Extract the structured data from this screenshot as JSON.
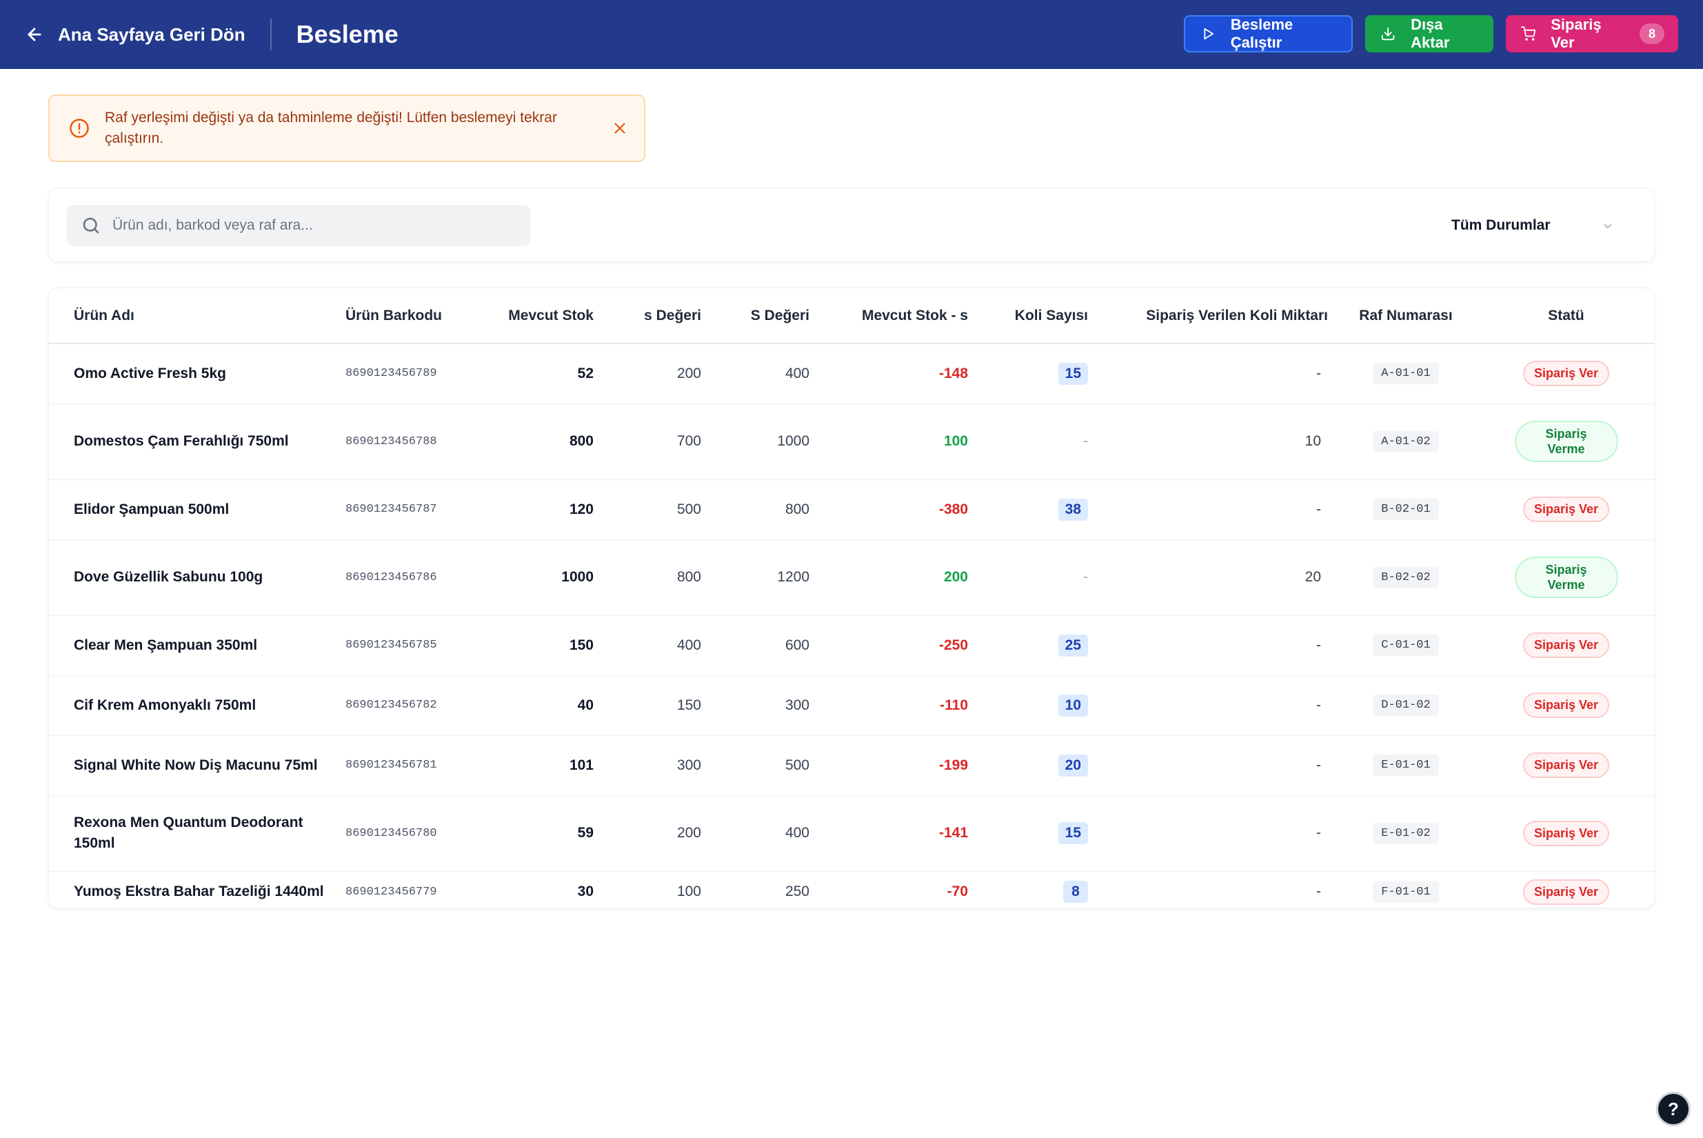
{
  "header": {
    "back_label": "Ana Sayfaya Geri Dön",
    "title": "Besleme",
    "run_label": "Besleme Çalıştır",
    "export_label": "Dışa Aktar",
    "order_label": "Sipariş Ver",
    "order_count": "8"
  },
  "alert": {
    "message": "Raf yerleşimi değişti ya da tahminleme değişti! Lütfen beslemeyi tekrar çalıştırın."
  },
  "filters": {
    "search_placeholder": "Ürün adı, barkod veya raf ara...",
    "status_value": "Tüm Durumlar"
  },
  "table": {
    "columns": [
      "Ürün Adı",
      "Ürün Barkodu",
      "Mevcut Stok",
      "s Değeri",
      "S Değeri",
      "Mevcut Stok - s",
      "Koli Sayısı",
      "Sipariş Verilen Koli Miktarı",
      "Raf Numarası",
      "Statü"
    ],
    "rows": [
      {
        "name": "Omo Active Fresh 5kg",
        "barcode": "8690123456789",
        "stock": "52",
        "s": "200",
        "S": "400",
        "diff": "-148",
        "koli": "15",
        "ordered": "-",
        "shelf": "A-01-01",
        "status": "Sipariş Ver"
      },
      {
        "name": "Domestos Çam Ferahlığı 750ml",
        "barcode": "8690123456788",
        "stock": "800",
        "s": "700",
        "S": "1000",
        "diff": "100",
        "koli": "-",
        "ordered": "10",
        "shelf": "A-01-02",
        "status": "Sipariş Verme"
      },
      {
        "name": "Elidor Şampuan 500ml",
        "barcode": "8690123456787",
        "stock": "120",
        "s": "500",
        "S": "800",
        "diff": "-380",
        "koli": "38",
        "ordered": "-",
        "shelf": "B-02-01",
        "status": "Sipariş Ver"
      },
      {
        "name": "Dove Güzellik Sabunu 100g",
        "barcode": "8690123456786",
        "stock": "1000",
        "s": "800",
        "S": "1200",
        "diff": "200",
        "koli": "-",
        "ordered": "20",
        "shelf": "B-02-02",
        "status": "Sipariş Verme"
      },
      {
        "name": "Clear Men Şampuan 350ml",
        "barcode": "8690123456785",
        "stock": "150",
        "s": "400",
        "S": "600",
        "diff": "-250",
        "koli": "25",
        "ordered": "-",
        "shelf": "C-01-01",
        "status": "Sipariş Ver"
      },
      {
        "name": "Cif Krem Amonyaklı 750ml",
        "barcode": "8690123456782",
        "stock": "40",
        "s": "150",
        "S": "300",
        "diff": "-110",
        "koli": "10",
        "ordered": "-",
        "shelf": "D-01-02",
        "status": "Sipariş Ver"
      },
      {
        "name": "Signal White Now Diş Macunu 75ml",
        "barcode": "8690123456781",
        "stock": "101",
        "s": "300",
        "S": "500",
        "diff": "-199",
        "koli": "20",
        "ordered": "-",
        "shelf": "E-01-01",
        "status": "Sipariş Ver"
      },
      {
        "name": "Rexona Men Quantum Deodorant 150ml",
        "barcode": "8690123456780",
        "stock": "59",
        "s": "200",
        "S": "400",
        "diff": "-141",
        "koli": "15",
        "ordered": "-",
        "shelf": "E-01-02",
        "status": "Sipariş Ver"
      },
      {
        "name": "Yumoş Ekstra Bahar Tazeliği 1440ml",
        "barcode": "8690123456779",
        "stock": "30",
        "s": "100",
        "S": "250",
        "diff": "-70",
        "koli": "8",
        "ordered": "-",
        "shelf": "F-01-01",
        "status": "Sipariş Ver"
      }
    ]
  },
  "help_label": "?",
  "colors": {
    "header_bg": "#233a8c",
    "run_button": "#1d4ed8",
    "export_button": "#16a34a",
    "order_button": "#db2777",
    "negative": "#dc2626",
    "positive": "#16a34a"
  }
}
